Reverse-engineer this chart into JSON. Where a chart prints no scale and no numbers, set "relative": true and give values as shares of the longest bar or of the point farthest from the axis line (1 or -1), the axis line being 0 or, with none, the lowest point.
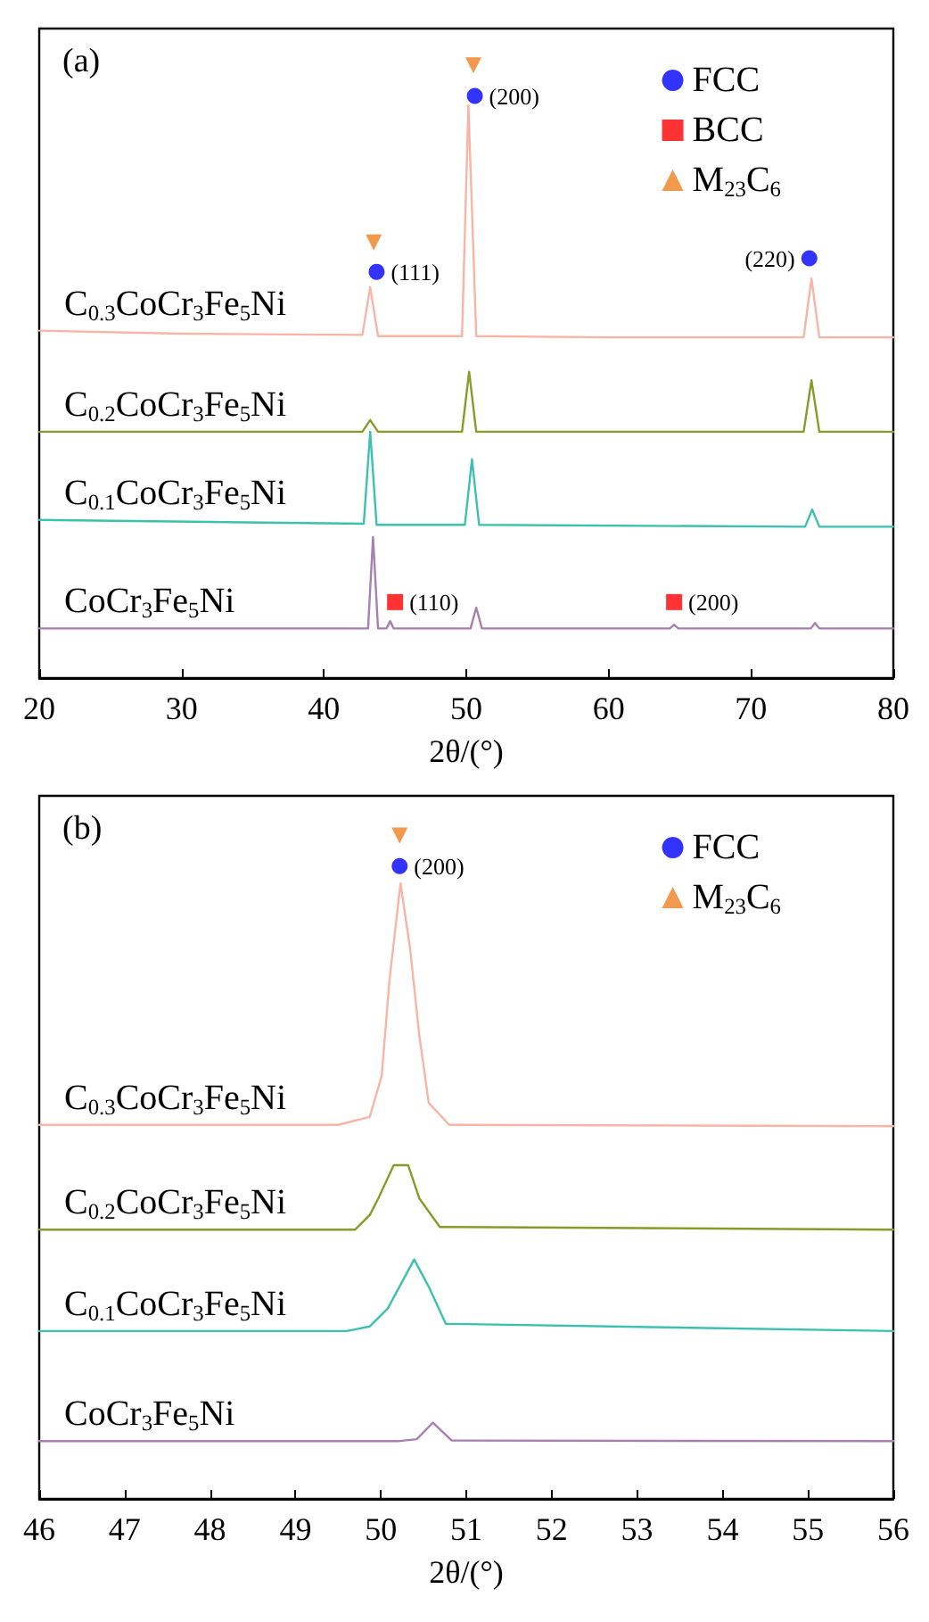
{
  "chart_data": [
    {
      "type": "line",
      "title": "(a)",
      "xlabel": "2θ/(°)",
      "xlim": [
        20,
        80
      ],
      "xticks": [
        20,
        30,
        40,
        50,
        60,
        70,
        80
      ],
      "relative": true,
      "legend": "top right",
      "marker": "none",
      "line_style": "solid",
      "annotations": [
        {
          "text": "(111)",
          "x": 43.7,
          "y": 0.663
        },
        {
          "text": "(200)",
          "x": 50.6,
          "y": 0.95
        },
        {
          "text": "(220)",
          "x": 74.1,
          "y": 0.685
        },
        {
          "text": "(110)",
          "x": 45.0,
          "y": 0.124
        },
        {
          "text": "(200)",
          "x": 64.6,
          "y": 0.124
        }
      ],
      "series": [
        {
          "name": "C$_{0.3}$CoCr$_{3}$Fe$_{5}$Ni",
          "color": "#f8b4a4",
          "x": [
            20,
            30,
            42.7,
            43.25,
            43.8,
            49.7,
            50.15,
            50.7,
            60,
            73.7,
            74.25,
            74.8,
            80
          ],
          "values": [
            0.567,
            0.562,
            0.56,
            0.638,
            0.558,
            0.558,
            0.935,
            0.558,
            0.556,
            0.556,
            0.652,
            0.556,
            0.556
          ]
        },
        {
          "name": "C$_{0.2}$CoCr$_{3}$Fe$_{5}$Ni",
          "color": "#8a9a2a",
          "x": [
            20,
            42.7,
            43.25,
            43.8,
            49.7,
            50.2,
            50.7,
            73.7,
            74.25,
            74.8,
            80
          ],
          "values": [
            0.402,
            0.402,
            0.421,
            0.402,
            0.402,
            0.5,
            0.402,
            0.402,
            0.486,
            0.402,
            0.402
          ]
        },
        {
          "name": "C$_{0.1}$CoCr$_{3}$Fe$_{5}$Ni",
          "color": "#3cc0b0",
          "x": [
            20,
            42.8,
            43.25,
            43.7,
            49.9,
            50.4,
            50.9,
            73.8,
            74.3,
            74.8,
            80
          ],
          "values": [
            0.258,
            0.252,
            0.402,
            0.25,
            0.25,
            0.357,
            0.25,
            0.247,
            0.275,
            0.247,
            0.247
          ]
        },
        {
          "name": "CoCr$_{3}$Fe$_{5}$Ni",
          "color": "#a77fb0",
          "x": [
            20,
            43.1,
            43.45,
            43.8,
            44.4,
            44.65,
            44.9,
            50.3,
            50.7,
            51.1,
            64.3,
            64.6,
            64.9,
            74.2,
            74.5,
            74.8,
            80
          ],
          "values": [
            0.081,
            0.081,
            0.23,
            0.081,
            0.081,
            0.093,
            0.081,
            0.081,
            0.115,
            0.081,
            0.081,
            0.087,
            0.081,
            0.081,
            0.09,
            0.081,
            0.081
          ]
        },
        {
          "name": "FCC",
          "type": "scatter",
          "marker": "circle",
          "color": "#0000ff",
          "x": [
            43.7,
            50.6,
            74.1
          ],
          "values": [
            0.663,
            0.95,
            0.685
          ]
        },
        {
          "name": "BCC",
          "type": "scatter",
          "marker": "square",
          "color": "#ff0000",
          "x": [
            45.0,
            64.6
          ],
          "values": [
            0.124,
            0.124
          ]
        },
        {
          "name": "M$_{23}$C$_{6}$",
          "type": "scatter",
          "marker": "triangle",
          "color": "#f08020",
          "x": [
            43.5,
            50.5
          ],
          "values": [
            0.711,
            1.0
          ]
        }
      ]
    },
    {
      "type": "line",
      "title": "(b)",
      "xlabel": "2θ/(°)",
      "xlim": [
        46,
        56
      ],
      "xticks": [
        46,
        47,
        48,
        49,
        50,
        51,
        52,
        53,
        54,
        55,
        56
      ],
      "relative": true,
      "legend": "top right",
      "marker": "none",
      "line_style": "solid",
      "annotations": [
        {
          "text": "(200)",
          "x": 50.22,
          "y": 0.954
        }
      ],
      "series": [
        {
          "name": "C$_{0.3}$CoCr$_{3}$Fe$_{5}$Ni",
          "color": "#f8b4a4",
          "x": [
            46,
            49.5,
            49.87,
            50.01,
            50.1,
            50.23,
            50.34,
            50.45,
            50.56,
            50.8,
            56
          ],
          "values": [
            0.564,
            0.564,
            0.576,
            0.638,
            0.781,
            0.928,
            0.832,
            0.699,
            0.597,
            0.564,
            0.562
          ]
        },
        {
          "name": "C$_{0.2}$CoCr$_{3}$Fe$_{5}$Ni",
          "color": "#8a9a2a",
          "x": [
            46,
            49.7,
            49.87,
            49.97,
            50.15,
            50.32,
            50.45,
            50.69,
            56
          ],
          "values": [
            0.406,
            0.406,
            0.428,
            0.453,
            0.503,
            0.503,
            0.453,
            0.41,
            0.406
          ]
        },
        {
          "name": "C$_{0.1}$CoCr$_{3}$Fe$_{5}$Ni",
          "color": "#3cc0b0",
          "x": [
            46,
            49.6,
            49.87,
            50.08,
            50.39,
            50.56,
            50.76,
            56
          ],
          "values": [
            0.253,
            0.253,
            0.26,
            0.287,
            0.361,
            0.32,
            0.264,
            0.253
          ]
        },
        {
          "name": "CoCr$_{3}$Fe$_{5}$Ni",
          "color": "#a77fb0",
          "x": [
            46,
            50.2,
            50.42,
            50.61,
            50.83,
            56
          ],
          "values": [
            0.087,
            0.087,
            0.09,
            0.115,
            0.088,
            0.087
          ]
        },
        {
          "name": "FCC",
          "type": "scatter",
          "marker": "circle",
          "color": "#0000ff",
          "x": [
            50.22
          ],
          "values": [
            0.954
          ]
        },
        {
          "name": "M$_{23}$C$_{6}$",
          "type": "scatter",
          "marker": "triangle",
          "color": "#f08020",
          "x": [
            50.22
          ],
          "values": [
            1.0
          ]
        }
      ]
    }
  ]
}
